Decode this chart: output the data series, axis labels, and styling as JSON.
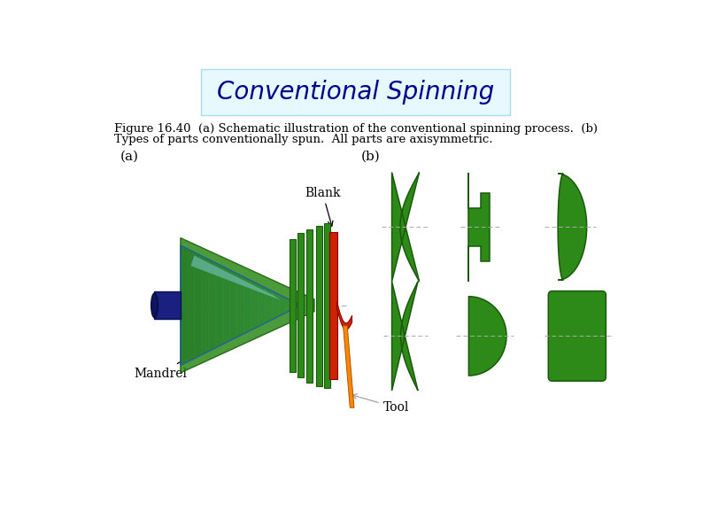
{
  "title": "Conventional Spinning",
  "title_color": "#00008B",
  "title_bg": "#E8F8FF",
  "title_border": "#AADDEE",
  "subtitle_line1": "Figure 16.40  (a) Schematic illustration of the conventional spinning process.  (b)",
  "subtitle_line2": "Types of parts conventionally spun.  All parts are axisymmetric.",
  "label_a": "(a)",
  "label_b": "(b)",
  "label_blank": "Blank",
  "label_tool": "Tool",
  "label_mandrel": "Mandrel",
  "green_color": "#2D8A18",
  "green_edge": "#1A5A0A",
  "blue_cone_light": "#5BB8E8",
  "blue_cone_mid": "#2E8AB0",
  "blue_cone_dark": "#1A4080",
  "blue_shaft": "#1A2080",
  "red_color": "#CC2200",
  "orange_color": "#FF8800",
  "axis_line_color": "#AAAAAA",
  "bg_color": "#FFFFFF"
}
